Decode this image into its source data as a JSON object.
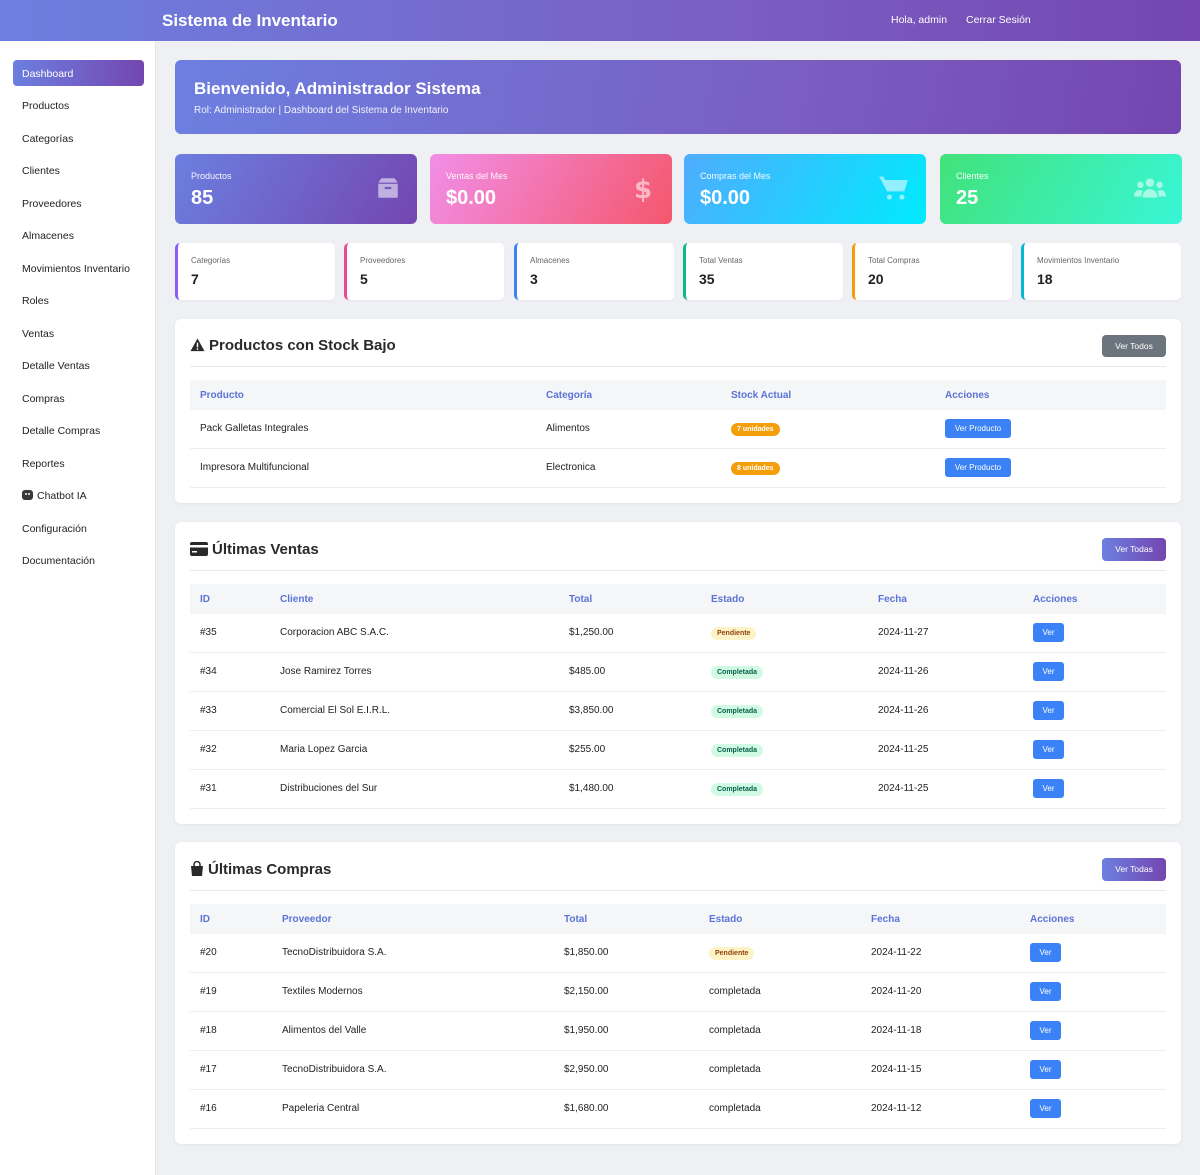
{
  "header": {
    "brand": "Sistema de Inventario",
    "greeting": "Hola, admin",
    "logout": "Cerrar Sesión"
  },
  "sidebar": {
    "items": [
      "Dashboard",
      "Productos",
      "Categorías",
      "Clientes",
      "Proveedores",
      "Almacenes",
      "Movimientos Inventario",
      "Roles",
      "Ventas",
      "Detalle Ventas",
      "Compras",
      "Detalle Compras",
      "Reportes",
      "Chatbot IA",
      "Configuración",
      "Documentación"
    ],
    "active": "Dashboard"
  },
  "welcome": {
    "title": "Bienvenido, Administrador Sistema",
    "subtitle": "Rol: Administrador | Dashboard del Sistema de Inventario"
  },
  "stats": [
    {
      "label": "Productos",
      "value": "85",
      "icon": "box-icon"
    },
    {
      "label": "Ventas del Mes",
      "value": "$0.00",
      "icon": "dollar-icon"
    },
    {
      "label": "Compras del Mes",
      "value": "$0.00",
      "icon": "cart-icon"
    },
    {
      "label": "Clientes",
      "value": "25",
      "icon": "users-icon"
    }
  ],
  "mini_stats": [
    {
      "label": "Categorías",
      "value": "7",
      "color": "#8b5cf6"
    },
    {
      "label": "Proveedores",
      "value": "5",
      "color": "#ec4899"
    },
    {
      "label": "Almacenes",
      "value": "3",
      "color": "#3b82f6"
    },
    {
      "label": "Total Ventas",
      "value": "35",
      "color": "#10b981"
    },
    {
      "label": "Total Compras",
      "value": "20",
      "color": "#f59e0b"
    },
    {
      "label": "Movimientos Inventario",
      "value": "18",
      "color": "#06b6d4"
    }
  ],
  "low_stock": {
    "title": "Productos con Stock Bajo",
    "button": "Ver Todos",
    "columns": [
      "Producto",
      "Categoría",
      "Stock Actual",
      "Acciones"
    ],
    "rows": [
      {
        "producto": "Pack Galletas Integrales",
        "categoria": "Alimentos",
        "stock": "7 unidades",
        "action": "Ver Producto"
      },
      {
        "producto": "Impresora Multifuncional",
        "categoria": "Electronica",
        "stock": "8 unidades",
        "action": "Ver Producto"
      }
    ]
  },
  "sales": {
    "title": "Últimas Ventas",
    "button": "Ver Todas",
    "columns": [
      "ID",
      "Cliente",
      "Total",
      "Estado",
      "Fecha",
      "Acciones"
    ],
    "rows": [
      {
        "id": "#35",
        "party": "Corporacion ABC S.A.C.",
        "total": "$1,250.00",
        "estado": "Pendiente",
        "fecha": "2024-11-27",
        "action": "Ver"
      },
      {
        "id": "#34",
        "party": "Jose Ramirez Torres",
        "total": "$485.00",
        "estado": "Completada",
        "fecha": "2024-11-26",
        "action": "Ver"
      },
      {
        "id": "#33",
        "party": "Comercial El Sol E.I.R.L.",
        "total": "$3,850.00",
        "estado": "Completada",
        "fecha": "2024-11-26",
        "action": "Ver"
      },
      {
        "id": "#32",
        "party": "Maria Lopez Garcia",
        "total": "$255.00",
        "estado": "Completada",
        "fecha": "2024-11-25",
        "action": "Ver"
      },
      {
        "id": "#31",
        "party": "Distribuciones del Sur",
        "total": "$1,480.00",
        "estado": "Completada",
        "fecha": "2024-11-25",
        "action": "Ver"
      }
    ]
  },
  "purchases": {
    "title": "Últimas Compras",
    "button": "Ver Todas",
    "columns": [
      "ID",
      "Proveedor",
      "Total",
      "Estado",
      "Fecha",
      "Acciones"
    ],
    "rows": [
      {
        "id": "#20",
        "party": "TecnoDistribuidora S.A.",
        "total": "$1,850.00",
        "estado": "Pendiente",
        "fecha": "2024-11-22",
        "action": "Ver"
      },
      {
        "id": "#19",
        "party": "Textiles Modernos",
        "total": "$2,150.00",
        "estado": "completada",
        "fecha": "2024-11-20",
        "action": "Ver"
      },
      {
        "id": "#18",
        "party": "Alimentos del Valle",
        "total": "$1,950.00",
        "estado": "completada",
        "fecha": "2024-11-18",
        "action": "Ver"
      },
      {
        "id": "#17",
        "party": "TecnoDistribuidora S.A.",
        "total": "$2,950.00",
        "estado": "completada",
        "fecha": "2024-11-15",
        "action": "Ver"
      },
      {
        "id": "#16",
        "party": "Papeleria Central",
        "total": "$1,680.00",
        "estado": "completada",
        "fecha": "2024-11-12",
        "action": "Ver"
      }
    ]
  }
}
